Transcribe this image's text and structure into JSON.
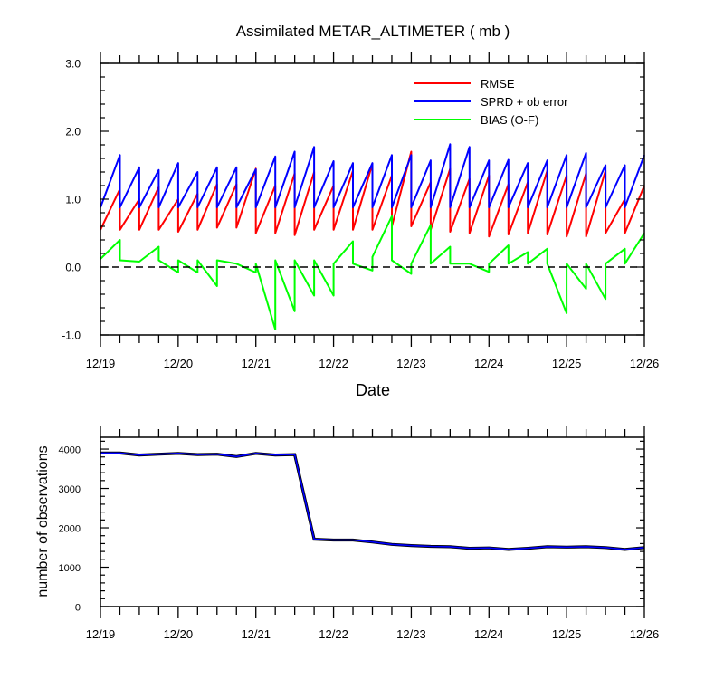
{
  "chart_data": [
    {
      "type": "line",
      "title": "Assimilated METAR_ALTIMETER ( mb )",
      "xlabel": "Date",
      "ylabel": "",
      "ylim": [
        -1.0,
        3.0
      ],
      "y_ticks": [
        "-1.0",
        "0.0",
        "1.0",
        "2.0",
        "3.0"
      ],
      "x_range_days": [
        0,
        7
      ],
      "x_tick_labels": [
        "12/19",
        "12/20",
        "12/21",
        "12/22",
        "12/23",
        "12/24",
        "12/25",
        "12/26"
      ],
      "zero_line": "dashed",
      "legend_position": "top-right",
      "series": [
        {
          "name": "RMSE",
          "color": "#ff0000",
          "x": [
            0,
            0.25,
            0.25,
            0.5,
            0.5,
            0.75,
            0.75,
            1.0,
            1.0,
            1.25,
            1.25,
            1.5,
            1.5,
            1.75,
            1.75,
            2.0,
            2.0,
            2.25,
            2.25,
            2.5,
            2.5,
            2.75,
            2.75,
            3.0,
            3.0,
            3.25,
            3.25,
            3.5,
            3.5,
            3.75,
            3.75,
            4.0,
            4.0,
            4.25,
            4.25,
            4.5,
            4.5,
            4.75,
            4.75,
            5.0,
            5.0,
            5.25,
            5.25,
            5.5,
            5.5,
            5.75,
            5.75,
            6.0,
            6.0,
            6.25,
            6.25,
            6.5,
            6.5,
            6.75,
            6.75,
            7.0
          ],
          "values": [
            0.55,
            1.15,
            0.55,
            1.0,
            0.55,
            1.18,
            0.55,
            1.0,
            0.52,
            1.08,
            0.55,
            1.22,
            0.58,
            1.22,
            0.58,
            1.45,
            0.5,
            1.2,
            0.5,
            1.38,
            0.47,
            1.4,
            0.55,
            1.2,
            0.55,
            1.42,
            0.55,
            1.52,
            0.55,
            1.35,
            0.6,
            1.7,
            0.6,
            1.25,
            0.55,
            1.45,
            0.52,
            1.3,
            0.5,
            1.35,
            0.45,
            1.22,
            0.48,
            1.25,
            0.5,
            1.42,
            0.48,
            1.35,
            0.45,
            1.38,
            0.45,
            1.42,
            0.5,
            1.0,
            0.5,
            1.2
          ]
        },
        {
          "name": "SPRD + ob error",
          "color": "#0000ff",
          "x": [
            0,
            0.25,
            0.25,
            0.5,
            0.5,
            0.75,
            0.75,
            1.0,
            1.0,
            1.25,
            1.25,
            1.5,
            1.5,
            1.75,
            1.75,
            2.0,
            2.0,
            2.25,
            2.25,
            2.5,
            2.5,
            2.75,
            2.75,
            3.0,
            3.0,
            3.25,
            3.25,
            3.5,
            3.5,
            3.75,
            3.75,
            4.0,
            4.0,
            4.25,
            4.25,
            4.5,
            4.5,
            4.75,
            4.75,
            5.0,
            5.0,
            5.25,
            5.25,
            5.5,
            5.5,
            5.75,
            5.75,
            6.0,
            6.0,
            6.25,
            6.25,
            6.5,
            6.5,
            6.75,
            6.75,
            7.0
          ],
          "values": [
            0.88,
            1.65,
            0.88,
            1.47,
            0.88,
            1.43,
            0.88,
            1.53,
            0.88,
            1.4,
            0.88,
            1.47,
            0.88,
            1.47,
            0.88,
            1.44,
            0.88,
            1.63,
            0.88,
            1.7,
            0.88,
            1.77,
            0.88,
            1.56,
            0.88,
            1.53,
            0.88,
            1.53,
            0.88,
            1.65,
            0.88,
            1.65,
            0.88,
            1.57,
            0.88,
            1.81,
            0.88,
            1.77,
            0.88,
            1.57,
            0.88,
            1.58,
            0.88,
            1.53,
            0.88,
            1.57,
            0.88,
            1.65,
            0.88,
            1.68,
            0.88,
            1.5,
            0.88,
            1.5,
            0.88,
            1.65
          ]
        },
        {
          "name": "BIAS (O-F)",
          "color": "#00ff00",
          "x": [
            0,
            0.25,
            0.25,
            0.5,
            0.5,
            0.75,
            0.75,
            1.0,
            1.0,
            1.25,
            1.25,
            1.5,
            1.5,
            1.75,
            1.75,
            2.0,
            2.0,
            2.25,
            2.25,
            2.5,
            2.5,
            2.75,
            2.75,
            3.0,
            3.0,
            3.25,
            3.25,
            3.5,
            3.5,
            3.75,
            3.75,
            4.0,
            4.0,
            4.25,
            4.25,
            4.5,
            4.5,
            4.75,
            4.75,
            5.0,
            5.0,
            5.25,
            5.25,
            5.5,
            5.5,
            5.75,
            5.75,
            6.0,
            6.0,
            6.25,
            6.25,
            6.5,
            6.5,
            6.75,
            6.75,
            7.0
          ],
          "values": [
            0.12,
            0.4,
            0.1,
            0.08,
            0.08,
            0.3,
            0.1,
            -0.08,
            0.1,
            -0.08,
            0.1,
            -0.28,
            0.1,
            0.05,
            0.05,
            -0.08,
            0.05,
            -0.92,
            0.1,
            -0.65,
            0.1,
            -0.42,
            0.1,
            -0.42,
            0.05,
            0.38,
            0.05,
            -0.05,
            0.15,
            0.75,
            0.1,
            -0.1,
            0.05,
            0.62,
            0.05,
            0.3,
            0.05,
            0.05,
            0.05,
            -0.07,
            0.05,
            0.32,
            0.05,
            0.22,
            0.05,
            0.27,
            0.05,
            -0.68,
            0.05,
            -0.32,
            0.05,
            -0.47,
            0.05,
            0.27,
            0.05,
            0.5
          ]
        }
      ]
    },
    {
      "type": "line",
      "title": "",
      "xlabel": "",
      "ylabel": "number of observations",
      "ylim": [
        0,
        4300
      ],
      "y_ticks": [
        "0",
        "1000",
        "2000",
        "3000",
        "4000"
      ],
      "x_range_days": [
        0,
        7
      ],
      "x_tick_labels": [
        "12/19",
        "12/20",
        "12/21",
        "12/22",
        "12/23",
        "12/24",
        "12/25",
        "12/26"
      ],
      "series": [
        {
          "color": "#0000ff",
          "x": [
            0,
            0.25,
            0.5,
            0.75,
            1.0,
            1.25,
            1.5,
            1.75,
            2.0,
            2.25,
            2.5,
            2.75,
            3.0,
            3.25,
            3.5,
            3.75,
            4.0,
            4.25,
            4.5,
            4.75,
            5.0,
            5.25,
            5.5,
            5.75,
            6.0,
            6.25,
            6.5,
            6.75,
            7.0
          ],
          "values": [
            3900,
            3900,
            3850,
            3870,
            3890,
            3860,
            3870,
            3810,
            3890,
            3850,
            3860,
            1710,
            1690,
            1690,
            1640,
            1580,
            1550,
            1530,
            1520,
            1480,
            1490,
            1450,
            1480,
            1520,
            1510,
            1520,
            1500,
            1450,
            1500
          ]
        }
      ]
    }
  ]
}
